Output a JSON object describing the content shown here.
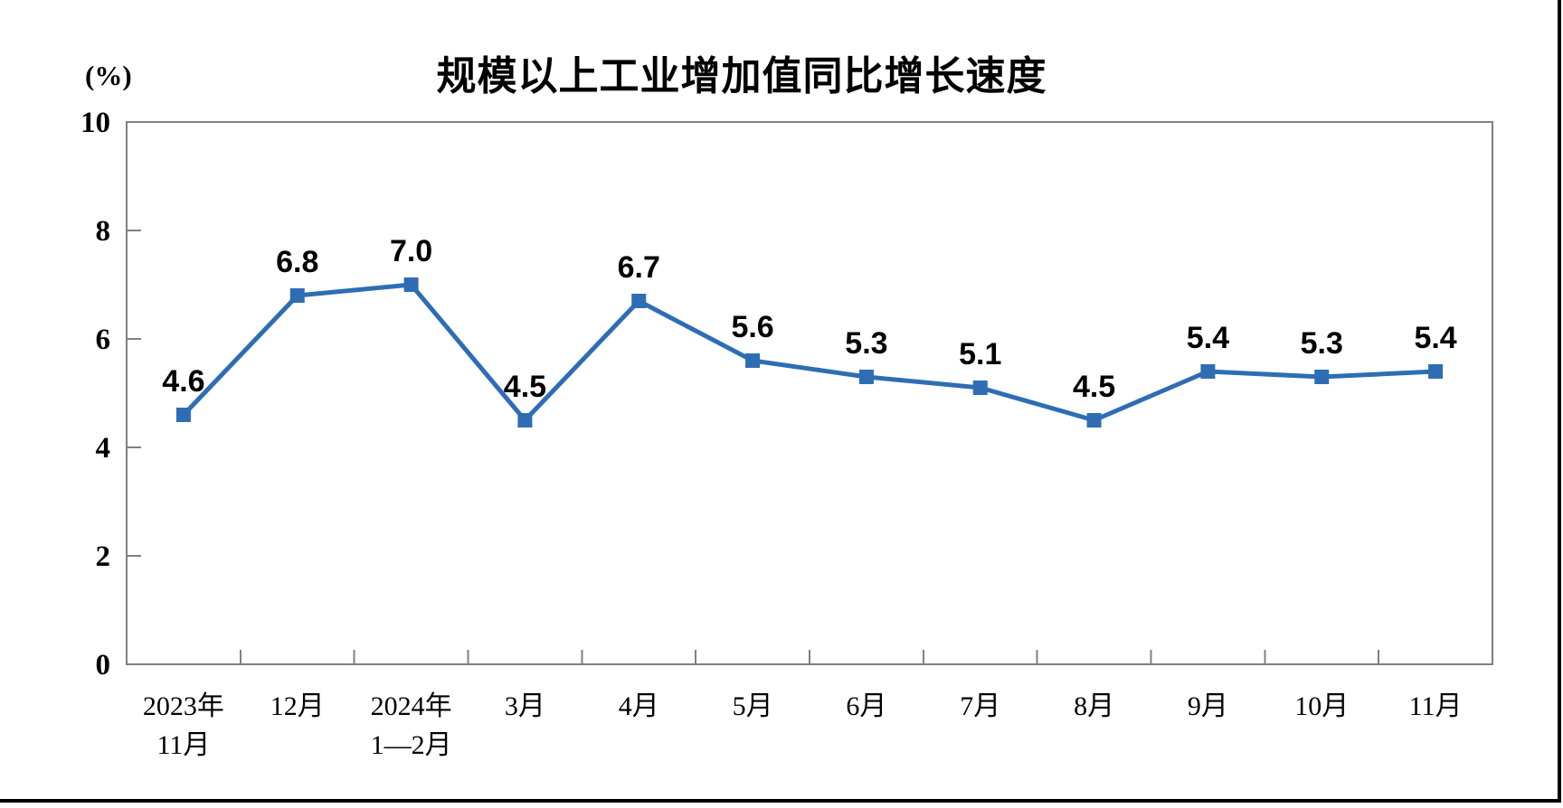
{
  "page": {
    "background": "#ffffff"
  },
  "chart_data": {
    "type": "line",
    "title": "规模以上工业增加值同比增长速度",
    "unit": "(%)",
    "categories": [
      [
        "2023年",
        "11月"
      ],
      [
        "12月"
      ],
      [
        "2024年",
        "1—2月"
      ],
      [
        "3月"
      ],
      [
        "4月"
      ],
      [
        "5月"
      ],
      [
        "6月"
      ],
      [
        "7月"
      ],
      [
        "8月"
      ],
      [
        "9月"
      ],
      [
        "10月"
      ],
      [
        "11月"
      ]
    ],
    "values": [
      4.6,
      6.8,
      7.0,
      4.5,
      6.7,
      5.6,
      5.3,
      5.1,
      4.5,
      5.4,
      5.3,
      5.4
    ],
    "value_labels": [
      "4.6",
      "6.8",
      "7.0",
      "4.5",
      "6.7",
      "5.6",
      "5.3",
      "5.1",
      "4.5",
      "5.4",
      "5.3",
      "5.4"
    ],
    "ylim": [
      0,
      10
    ],
    "yticks": [
      0,
      2,
      4,
      6,
      8,
      10
    ],
    "grid": false,
    "legend": "none",
    "marker_shape": "square",
    "colors": {
      "line": "#2E6DB4",
      "marker": "#2E6DB4",
      "axis": "#808080",
      "text": "#000000"
    }
  }
}
